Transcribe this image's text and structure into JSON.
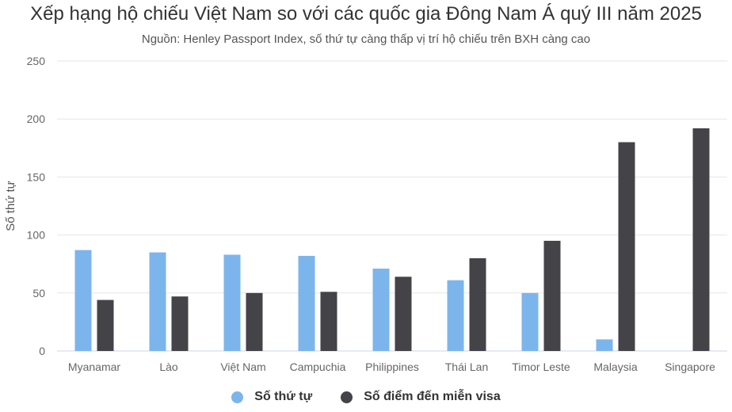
{
  "header": {
    "title": "Xếp hạng hộ chiếu Việt Nam so với các quốc gia Đông Nam Á quý III năm 2025",
    "subtitle": "Nguồn: Henley Passport Index, số thứ tự càng thấp vị trí hộ chiếu trên BXH càng cao"
  },
  "chart_data": {
    "type": "bar",
    "title": "Xếp hạng hộ chiếu Việt Nam so với các quốc gia Đông Nam Á quý III năm 2025",
    "subtitle": "Nguồn: Henley Passport Index, số thứ tự càng thấp vị trí hộ chiếu trên BXH càng cao",
    "xlabel": "",
    "ylabel": "Số thứ tự",
    "ylim": [
      0,
      250
    ],
    "yticks": [
      0,
      50,
      100,
      150,
      200,
      250
    ],
    "grid": true,
    "legend_position": "bottom",
    "categories": [
      "Myanamar",
      "Lào",
      "Việt Nam",
      "Campuchia",
      "Philippines",
      "Thái Lan",
      "Timor Leste",
      "Malaysia",
      "Singapore"
    ],
    "series": [
      {
        "name": "Số thứ tự",
        "color": "#7cb5ec",
        "values": [
          87,
          85,
          83,
          82,
          71,
          61,
          50,
          10,
          0
        ]
      },
      {
        "name": "Số điểm đến miễn visa",
        "color": "#434348",
        "values": [
          44,
          47,
          50,
          51,
          64,
          80,
          95,
          180,
          192
        ]
      }
    ]
  }
}
